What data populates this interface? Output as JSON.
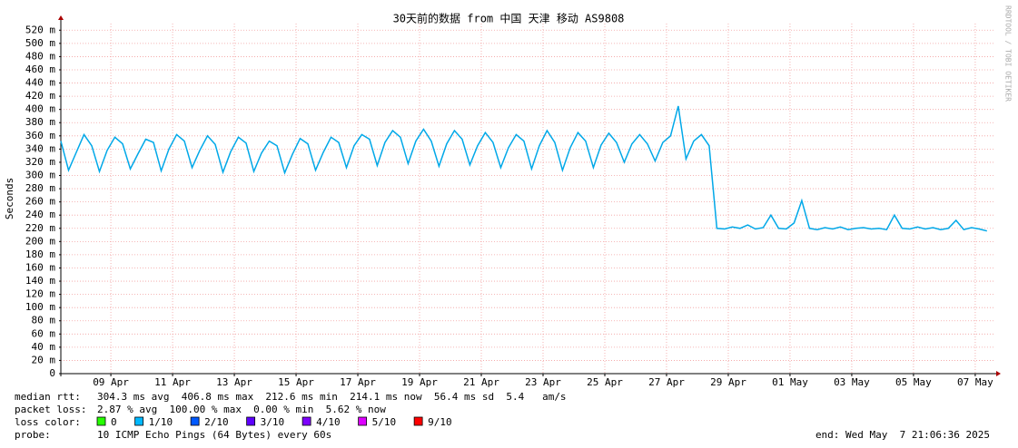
{
  "chart_data": {
    "type": "line",
    "title": "30天前的数据 from 中国 天津 移动 AS9808",
    "y_label": "Seconds",
    "watermark": "RRDTOOL / TOBI OETIKER",
    "ylim": [
      0,
      0.53
    ],
    "yticks": [
      0,
      {
        "value": 0.02,
        "label": "20 m"
      },
      {
        "value": 0.04,
        "label": "40 m"
      },
      {
        "value": 0.06,
        "label": "60 m"
      },
      {
        "value": 0.08,
        "label": "80 m"
      },
      {
        "value": 0.1,
        "label": "100 m"
      },
      {
        "value": 0.12,
        "label": "120 m"
      },
      {
        "value": 0.14,
        "label": "140 m"
      },
      {
        "value": 0.16,
        "label": "160 m"
      },
      {
        "value": 0.18,
        "label": "180 m"
      },
      {
        "value": 0.2,
        "label": "200 m"
      },
      {
        "value": 0.22,
        "label": "220 m"
      },
      {
        "value": 0.24,
        "label": "240 m"
      },
      {
        "value": 0.26,
        "label": "260 m"
      },
      {
        "value": 0.28,
        "label": "280 m"
      },
      {
        "value": 0.3,
        "label": "300 m"
      },
      {
        "value": 0.32,
        "label": "320 m"
      },
      {
        "value": 0.34,
        "label": "340 m"
      },
      {
        "value": 0.36,
        "label": "360 m"
      },
      {
        "value": 0.38,
        "label": "380 m"
      },
      {
        "value": 0.4,
        "label": "400 m"
      },
      {
        "value": 0.42,
        "label": "420 m"
      },
      {
        "value": 0.44,
        "label": "440 m"
      },
      {
        "value": 0.46,
        "label": "460 m"
      },
      {
        "value": 0.48,
        "label": "480 m"
      },
      {
        "value": 0.5,
        "label": "500 m"
      },
      {
        "value": 0.52,
        "label": "520 m"
      }
    ],
    "xlim": [
      0,
      30.24
    ],
    "xticks": [
      {
        "value": 1.62,
        "label": "09 Apr"
      },
      {
        "value": 3.62,
        "label": "11 Apr"
      },
      {
        "value": 5.62,
        "label": "13 Apr"
      },
      {
        "value": 7.62,
        "label": "15 Apr"
      },
      {
        "value": 9.62,
        "label": "17 Apr"
      },
      {
        "value": 11.62,
        "label": "19 Apr"
      },
      {
        "value": 13.62,
        "label": "21 Apr"
      },
      {
        "value": 15.62,
        "label": "23 Apr"
      },
      {
        "value": 17.62,
        "label": "25 Apr"
      },
      {
        "value": 19.62,
        "label": "27 Apr"
      },
      {
        "value": 21.62,
        "label": "29 Apr"
      },
      {
        "value": 23.62,
        "label": "01 May"
      },
      {
        "value": 25.62,
        "label": "03 May"
      },
      {
        "value": 27.62,
        "label": "05 May"
      },
      {
        "value": 29.62,
        "label": "07 May"
      }
    ],
    "grid": true,
    "x": [
      0,
      0.25,
      0.5,
      0.75,
      1,
      1.25,
      1.5,
      1.75,
      2,
      2.25,
      2.5,
      2.75,
      3,
      3.25,
      3.5,
      3.75,
      4,
      4.25,
      4.5,
      4.75,
      5,
      5.25,
      5.5,
      5.75,
      6,
      6.25,
      6.5,
      6.75,
      7,
      7.25,
      7.5,
      7.75,
      8,
      8.25,
      8.5,
      8.75,
      9,
      9.25,
      9.5,
      9.75,
      10,
      10.25,
      10.5,
      10.75,
      11,
      11.25,
      11.5,
      11.75,
      12,
      12.25,
      12.5,
      12.75,
      13,
      13.25,
      13.5,
      13.75,
      14,
      14.25,
      14.5,
      14.75,
      15,
      15.25,
      15.5,
      15.75,
      16,
      16.25,
      16.5,
      16.75,
      17,
      17.25,
      17.5,
      17.75,
      18,
      18.25,
      18.5,
      18.75,
      19,
      19.25,
      19.5,
      19.75,
      20,
      20.25,
      20.5,
      20.75,
      21,
      21.25,
      21.5,
      21.75,
      22,
      22.25,
      22.5,
      22.75,
      23,
      23.25,
      23.5,
      23.75,
      24,
      24.25,
      24.5,
      24.75,
      25,
      25.25,
      25.5,
      25.75,
      26,
      26.25,
      26.5,
      26.75,
      27,
      27.25,
      27.5,
      27.75,
      28,
      28.25,
      28.5,
      28.75,
      29,
      29.25,
      29.5,
      29.75,
      30
    ],
    "series": [
      {
        "name": "median rtt:",
        "color": "#00a8e8",
        "values": [
          0.352,
          0.308,
          0.335,
          0.362,
          0.345,
          0.306,
          0.338,
          0.358,
          0.348,
          0.31,
          0.333,
          0.355,
          0.35,
          0.307,
          0.34,
          0.362,
          0.352,
          0.312,
          0.338,
          0.36,
          0.347,
          0.305,
          0.336,
          0.358,
          0.349,
          0.306,
          0.334,
          0.352,
          0.345,
          0.304,
          0.332,
          0.356,
          0.348,
          0.308,
          0.335,
          0.358,
          0.35,
          0.312,
          0.345,
          0.362,
          0.355,
          0.315,
          0.35,
          0.368,
          0.358,
          0.318,
          0.352,
          0.37,
          0.352,
          0.314,
          0.348,
          0.368,
          0.355,
          0.316,
          0.345,
          0.365,
          0.35,
          0.312,
          0.342,
          0.362,
          0.352,
          0.31,
          0.345,
          0.368,
          0.35,
          0.308,
          0.342,
          0.365,
          0.352,
          0.312,
          0.346,
          0.364,
          0.35,
          0.32,
          0.348,
          0.362,
          0.348,
          0.322,
          0.35,
          0.36,
          0.405,
          0.325,
          0.352,
          0.362,
          0.345,
          0.22,
          0.219,
          0.222,
          0.22,
          0.225,
          0.219,
          0.221,
          0.24,
          0.22,
          0.219,
          0.228,
          0.262,
          0.22,
          0.218,
          0.221,
          0.219,
          0.222,
          0.218,
          0.22,
          0.221,
          0.219,
          0.22,
          0.218,
          0.24,
          0.22,
          0.219,
          0.222,
          0.219,
          0.221,
          0.218,
          0.22,
          0.232,
          0.218,
          0.221,
          0.219,
          0.216
        ]
      }
    ],
    "stats": [
      {
        "text": "304.3 ms avg  406.8 ms max  212.6 ms min  214.1 ms now  56.4 ms sd  5.4   am/s"
      },
      {
        "label": "packet loss:",
        "text": "2.87 % avg  100.00 % max  0.00 % min  5.62 % now"
      }
    ],
    "loss_color": {
      "label": "loss color:",
      "items": [
        {
          "name": "0",
          "color": "#26ff00"
        },
        {
          "name": "1/10",
          "color": "#00b8ff"
        },
        {
          "name": "2/10",
          "color": "#0059ff"
        },
        {
          "name": "3/10",
          "color": "#5e00ff"
        },
        {
          "name": "4/10",
          "color": "#7e00ff"
        },
        {
          "name": "5/10",
          "color": "#dd00ff"
        },
        {
          "name": "9/10",
          "color": "#ff0000"
        }
      ]
    },
    "probe": {
      "label": "probe:",
      "text": "10 ICMP Echo Pings (64 Bytes) every 60s"
    },
    "end": "end: Wed May  7 21:06:36 2025"
  }
}
